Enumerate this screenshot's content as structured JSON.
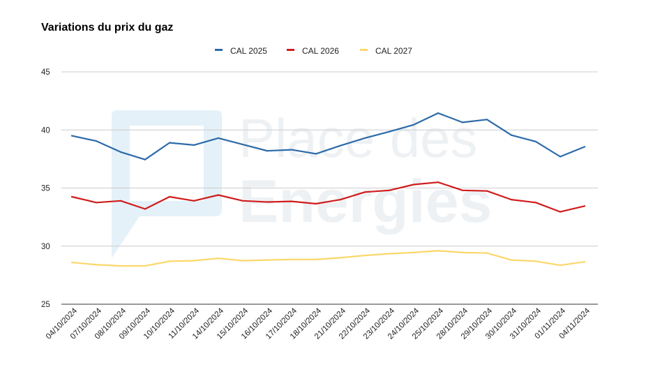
{
  "watermark": {
    "line1": "Place des",
    "line2": "Energies",
    "logo_color": "#e4f1f8",
    "text_color": "#eef1f4"
  },
  "chart_data": {
    "type": "line",
    "title": "Variations du prix du gaz",
    "xlabel": "",
    "ylabel": "",
    "legend_position": "top",
    "grid": true,
    "ylim": [
      25,
      45
    ],
    "yticks": [
      25,
      30,
      35,
      40,
      45
    ],
    "categories": [
      "04/10/2024",
      "07/10/2024",
      "08/10/2024",
      "09/10/2024",
      "10/10/2024",
      "11/10/2024",
      "14/10/2024",
      "15/10/2024",
      "16/10/2024",
      "17/10/2024",
      "18/10/2024",
      "21/10/2024",
      "22/10/2024",
      "23/10/2024",
      "24/10/2024",
      "25/10/2024",
      "28/10/2024",
      "29/10/2024",
      "30/10/2024",
      "31/10/2024",
      "01/11/2024",
      "04/11/2024"
    ],
    "series": [
      {
        "name": "CAL 2025",
        "color": "#2c6aa8",
        "values": [
          39.5,
          39.05,
          38.1,
          37.45,
          38.9,
          38.7,
          39.3,
          38.75,
          38.2,
          38.3,
          37.95,
          38.65,
          39.3,
          39.85,
          40.45,
          41.45,
          40.65,
          40.9,
          39.55,
          39.0,
          37.7,
          38.55
        ]
      },
      {
        "name": "CAL 2026",
        "color": "#d01c1c",
        "values": [
          34.25,
          33.75,
          33.9,
          33.2,
          34.25,
          33.9,
          34.4,
          33.9,
          33.8,
          33.85,
          33.65,
          34.0,
          34.65,
          34.8,
          35.3,
          35.5,
          34.8,
          34.75,
          34.0,
          33.75,
          32.95,
          33.45
        ]
      },
      {
        "name": "CAL 2027",
        "color": "#fbd76a",
        "values": [
          28.6,
          28.4,
          28.3,
          28.3,
          28.7,
          28.75,
          28.95,
          28.75,
          28.8,
          28.85,
          28.85,
          29.0,
          29.2,
          29.35,
          29.45,
          29.6,
          29.45,
          29.4,
          28.8,
          28.7,
          28.35,
          28.65
        ]
      }
    ]
  }
}
